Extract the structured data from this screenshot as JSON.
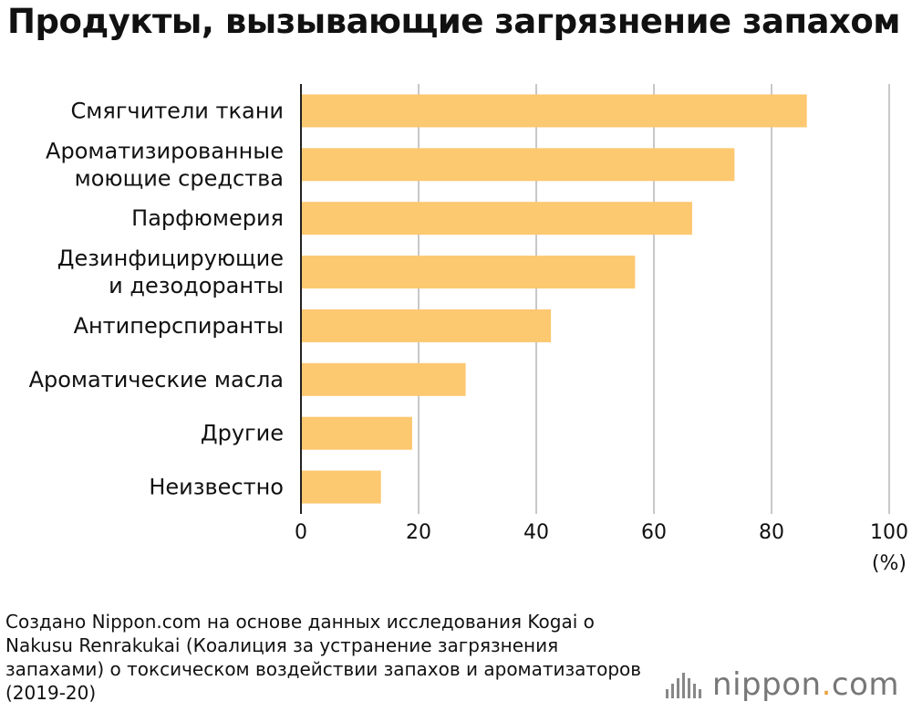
{
  "title": "Продукты, вызывающие загрязнение запахом",
  "unit": "(%)",
  "source": "Создано Nippon.com на основе данных исследования Kogai o Nakusu Renrakukai (Коалиция за устранение загрязнения запахами) о токсическом воздействии запахов и ароматизаторов (2019-20)",
  "logo": {
    "name": "nippon",
    "dot": ".",
    "tld": "com"
  },
  "colors": {
    "bar": "#fcc870",
    "grid": "#c8c8c8",
    "axis": "#222222",
    "logo_dot": "#e8a23a"
  },
  "chart_data": {
    "type": "bar",
    "orientation": "horizontal",
    "categories": [
      [
        "Смягчители ткани"
      ],
      [
        "Ароматизированные",
        "моющие средства"
      ],
      [
        "Парфюмерия"
      ],
      [
        "Дезинфицирующие",
        "и дезодоранты"
      ],
      [
        "Антиперспиранты"
      ],
      [
        "Ароматические масла"
      ],
      [
        "Другие"
      ],
      [
        "Неизвестно"
      ]
    ],
    "values": [
      86,
      73.7,
      66.5,
      56.8,
      42.5,
      28,
      18.9,
      13.6
    ],
    "xlim": [
      0,
      100
    ],
    "xticks": [
      0,
      20,
      40,
      60,
      80,
      100
    ],
    "grid": true
  }
}
